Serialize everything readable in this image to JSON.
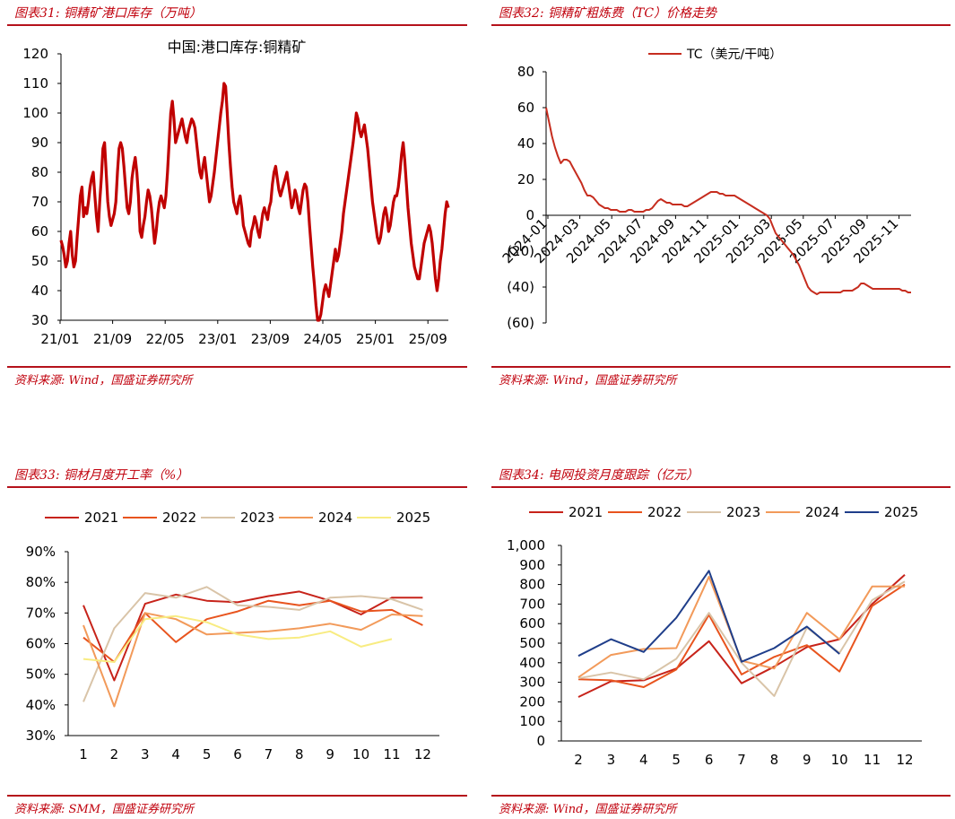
{
  "panels": [
    {
      "title": "图表31:  铜精矿港口库存（万吨）",
      "source": "资料来源:  Wind，国盛证券研究所"
    },
    {
      "title": "图表32:  铜精矿粗炼费（TC）价格走势",
      "source": "资料来源:  Wind，国盛证券研究所"
    },
    {
      "title": "图表33:  铜材月度开工率（%）",
      "source": "资料来源:  SMM，国盛证券研究所"
    },
    {
      "title": "图表34:  电网投资月度跟踪（亿元）",
      "source": "资料来源:  Wind，国盛证券研究所"
    }
  ],
  "chart_data": [
    {
      "type": "line",
      "title": "中国:港口库存:铜精矿",
      "x_tick_labels": [
        "21/01",
        "21/09",
        "22/05",
        "23/01",
        "23/09",
        "24/05",
        "25/01",
        "25/09"
      ],
      "y_ticks": [
        30,
        40,
        50,
        60,
        70,
        80,
        90,
        100,
        110,
        120
      ],
      "ylim": [
        30,
        120
      ],
      "series": [
        {
          "color": "#c00000",
          "values": [
            57,
            55,
            52,
            48,
            50,
            56,
            60,
            52,
            48,
            50,
            58,
            65,
            72,
            75,
            65,
            68,
            66,
            70,
            75,
            78,
            80,
            72,
            65,
            60,
            70,
            78,
            88,
            90,
            80,
            70,
            65,
            62,
            64,
            66,
            70,
            80,
            88,
            90,
            88,
            82,
            75,
            68,
            66,
            70,
            78,
            82,
            85,
            80,
            72,
            60,
            58,
            62,
            65,
            70,
            74,
            72,
            68,
            62,
            56,
            60,
            66,
            70,
            72,
            70,
            68,
            72,
            80,
            90,
            100,
            104,
            98,
            90,
            92,
            94,
            96,
            98,
            95,
            92,
            90,
            94,
            96,
            98,
            97,
            95,
            90,
            85,
            80,
            78,
            82,
            85,
            80,
            75,
            70,
            72,
            76,
            80,
            85,
            90,
            95,
            100,
            104,
            110,
            109,
            100,
            90,
            82,
            75,
            70,
            68,
            66,
            70,
            72,
            68,
            62,
            60,
            58,
            56,
            55,
            60,
            62,
            65,
            63,
            60,
            58,
            62,
            66,
            68,
            66,
            64,
            68,
            70,
            76,
            80,
            82,
            78,
            74,
            72,
            74,
            76,
            78,
            80,
            76,
            72,
            68,
            70,
            74,
            72,
            68,
            66,
            70,
            74,
            76,
            75,
            70,
            62,
            55,
            48,
            42,
            35,
            30,
            30,
            32,
            36,
            40,
            42,
            40,
            38,
            42,
            46,
            50,
            54,
            50,
            52,
            56,
            60,
            66,
            70,
            74,
            78,
            82,
            86,
            90,
            95,
            100,
            98,
            94,
            92,
            94,
            96,
            92,
            88,
            82,
            76,
            70,
            66,
            62,
            58,
            56,
            58,
            62,
            66,
            68,
            65,
            60,
            62,
            66,
            70,
            72,
            72,
            75,
            80,
            86,
            90,
            84,
            76,
            68,
            62,
            56,
            52,
            48,
            46,
            44,
            44,
            48,
            52,
            56,
            58,
            60,
            62,
            60,
            56,
            50,
            44,
            40,
            44,
            50,
            54,
            60,
            66,
            70,
            68
          ]
        }
      ]
    },
    {
      "type": "line",
      "legend": [
        "TC（美元/干吨）"
      ],
      "x_tick_labels": [
        "2024-01",
        "2024-03",
        "2024-05",
        "2024-07",
        "2024-09",
        "2024-11",
        "2025-01",
        "2025-03",
        "2025-05",
        "2025-07",
        "2025-09",
        "2025-11"
      ],
      "y_tick_labels": [
        "80",
        "60",
        "40",
        "20",
        "0",
        "(20)",
        "(40)",
        "(60)"
      ],
      "ylim": [
        -60,
        80
      ],
      "series": [
        {
          "name": "TC（美元/干吨）",
          "color": "#c62d1f",
          "values": [
            60,
            52,
            44,
            38,
            33,
            29,
            31,
            31,
            30,
            27,
            24,
            21,
            18,
            14,
            11,
            11,
            10,
            8,
            6,
            5,
            4,
            4,
            3,
            3,
            3,
            2,
            2,
            2,
            3,
            3,
            2,
            2,
            2,
            2,
            3,
            3,
            4,
            6,
            8,
            9,
            8,
            7,
            7,
            6,
            6,
            6,
            6,
            5,
            5,
            6,
            7,
            8,
            9,
            10,
            11,
            12,
            13,
            13,
            13,
            12,
            12,
            11,
            11,
            11,
            11,
            10,
            9,
            8,
            7,
            6,
            5,
            4,
            3,
            2,
            1,
            0,
            -2,
            -6,
            -10,
            -12,
            -14,
            -16,
            -18,
            -20,
            -22,
            -25,
            -28,
            -32,
            -36,
            -40,
            -42,
            -43,
            -44,
            -43,
            -43,
            -43,
            -43,
            -43,
            -43,
            -43,
            -43,
            -42,
            -42,
            -42,
            -42,
            -41,
            -40,
            -38,
            -38,
            -39,
            -40,
            -41,
            -41,
            -41,
            -41,
            -41,
            -41,
            -41,
            -41,
            -41,
            -41,
            -42,
            -42,
            -43,
            -43
          ]
        }
      ]
    },
    {
      "type": "line",
      "categories": [
        "1",
        "2",
        "3",
        "4",
        "5",
        "6",
        "7",
        "8",
        "9",
        "10",
        "11",
        "12"
      ],
      "y_tick_labels": [
        "90%",
        "80%",
        "70%",
        "60%",
        "50%",
        "40%",
        "30%"
      ],
      "ylim": [
        30,
        90
      ],
      "series": [
        {
          "name": "2021",
          "color": "#c7231a",
          "values": [
            72.5,
            48,
            73,
            76,
            74,
            73.5,
            75.5,
            77,
            74,
            69.5,
            75,
            75
          ]
        },
        {
          "name": "2022",
          "color": "#e8541e",
          "values": [
            62,
            54,
            70,
            60.5,
            68,
            70.5,
            74,
            72.5,
            74,
            70.5,
            71,
            66
          ]
        },
        {
          "name": "2023",
          "color": "#d9c4a8",
          "values": [
            41,
            65,
            76.5,
            75,
            78.5,
            72.5,
            72,
            71,
            75,
            75.5,
            74.5,
            71
          ]
        },
        {
          "name": "2024",
          "color": "#f29a5a",
          "values": [
            66,
            39.5,
            70,
            68,
            63,
            63.5,
            64,
            65,
            66.5,
            64.5,
            69.5,
            69
          ]
        },
        {
          "name": "2025",
          "color": "#f8ec82",
          "values": [
            55,
            54,
            68,
            69,
            67,
            63,
            61.5,
            62,
            64,
            59,
            61.5,
            null
          ]
        }
      ]
    },
    {
      "type": "line",
      "categories": [
        "2",
        "3",
        "4",
        "5",
        "6",
        "7",
        "8",
        "9",
        "10",
        "11",
        "12"
      ],
      "y_tick_labels": [
        "1,000",
        "900",
        "800",
        "700",
        "600",
        "500",
        "400",
        "300",
        "200",
        "100",
        "0"
      ],
      "ylim": [
        0,
        1000
      ],
      "series": [
        {
          "name": "2021",
          "color": "#c7231a",
          "values": [
            225,
            305,
            310,
            370,
            510,
            295,
            380,
            480,
            520,
            700,
            850
          ]
        },
        {
          "name": "2022",
          "color": "#e8541e",
          "values": [
            315,
            310,
            275,
            365,
            645,
            340,
            430,
            490,
            355,
            690,
            800
          ]
        },
        {
          "name": "2023",
          "color": "#d9c4a8",
          "values": [
            320,
            350,
            315,
            420,
            655,
            400,
            230,
            580,
            450,
            720,
            815
          ]
        },
        {
          "name": "2024",
          "color": "#f29a5a",
          "values": [
            325,
            440,
            470,
            475,
            840,
            410,
            370,
            655,
            520,
            790,
            790
          ]
        },
        {
          "name": "2025",
          "color": "#1f3e8a",
          "values": [
            435,
            520,
            455,
            630,
            870,
            405,
            475,
            585,
            445,
            null,
            null
          ]
        }
      ]
    }
  ]
}
